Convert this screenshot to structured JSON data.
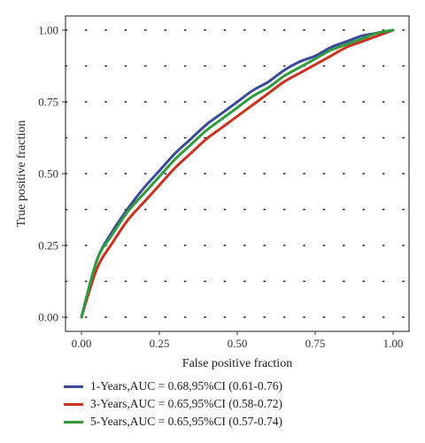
{
  "chart_data": {
    "type": "line",
    "title": "",
    "xlabel": "False positive fraction",
    "ylabel": "True positive fraction",
    "xlim": [
      0,
      1
    ],
    "ylim": [
      0,
      1
    ],
    "x_ticks": [
      "0.00",
      "0.25",
      "0.50",
      "0.75",
      "1.00"
    ],
    "y_ticks": [
      "0.00",
      "0.25",
      "0.50",
      "0.75",
      "1.00"
    ],
    "grid": "dotted",
    "legend_position": "bottom-left",
    "series": [
      {
        "name": "1-Years,AUC = 0.68,95%CI (0.61-0.76)",
        "color": "#3b4a9a",
        "points": [
          [
            0,
            0
          ],
          [
            0.05,
            0.2
          ],
          [
            0.1,
            0.3
          ],
          [
            0.15,
            0.38
          ],
          [
            0.2,
            0.45
          ],
          [
            0.25,
            0.51
          ],
          [
            0.3,
            0.57
          ],
          [
            0.35,
            0.62
          ],
          [
            0.4,
            0.67
          ],
          [
            0.45,
            0.71
          ],
          [
            0.5,
            0.75
          ],
          [
            0.55,
            0.79
          ],
          [
            0.6,
            0.82
          ],
          [
            0.65,
            0.86
          ],
          [
            0.7,
            0.89
          ],
          [
            0.75,
            0.91
          ],
          [
            0.8,
            0.94
          ],
          [
            0.85,
            0.96
          ],
          [
            0.9,
            0.98
          ],
          [
            0.95,
            0.99
          ],
          [
            1,
            1
          ]
        ]
      },
      {
        "name": "3-Years,AUC = 0.65,95%CI (0.58-0.72)",
        "color": "#c8321e",
        "points": [
          [
            0,
            0
          ],
          [
            0.05,
            0.17
          ],
          [
            0.1,
            0.26
          ],
          [
            0.15,
            0.34
          ],
          [
            0.2,
            0.4
          ],
          [
            0.25,
            0.46
          ],
          [
            0.3,
            0.52
          ],
          [
            0.35,
            0.57
          ],
          [
            0.4,
            0.62
          ],
          [
            0.45,
            0.66
          ],
          [
            0.5,
            0.7
          ],
          [
            0.55,
            0.74
          ],
          [
            0.6,
            0.78
          ],
          [
            0.65,
            0.82
          ],
          [
            0.7,
            0.85
          ],
          [
            0.75,
            0.88
          ],
          [
            0.8,
            0.91
          ],
          [
            0.85,
            0.94
          ],
          [
            0.9,
            0.96
          ],
          [
            0.95,
            0.98
          ],
          [
            1,
            1
          ]
        ]
      },
      {
        "name": "5-Years,AUC = 0.65,95%CI (0.57-0.74)",
        "color": "#2e9b3e",
        "points": [
          [
            0,
            0
          ],
          [
            0.05,
            0.2
          ],
          [
            0.1,
            0.29
          ],
          [
            0.15,
            0.37
          ],
          [
            0.2,
            0.43
          ],
          [
            0.25,
            0.49
          ],
          [
            0.3,
            0.55
          ],
          [
            0.35,
            0.6
          ],
          [
            0.4,
            0.65
          ],
          [
            0.45,
            0.69
          ],
          [
            0.5,
            0.73
          ],
          [
            0.55,
            0.77
          ],
          [
            0.6,
            0.8
          ],
          [
            0.65,
            0.84
          ],
          [
            0.7,
            0.87
          ],
          [
            0.75,
            0.9
          ],
          [
            0.8,
            0.93
          ],
          [
            0.85,
            0.95
          ],
          [
            0.9,
            0.97
          ],
          [
            0.95,
            0.99
          ],
          [
            1,
            1
          ]
        ]
      }
    ]
  }
}
